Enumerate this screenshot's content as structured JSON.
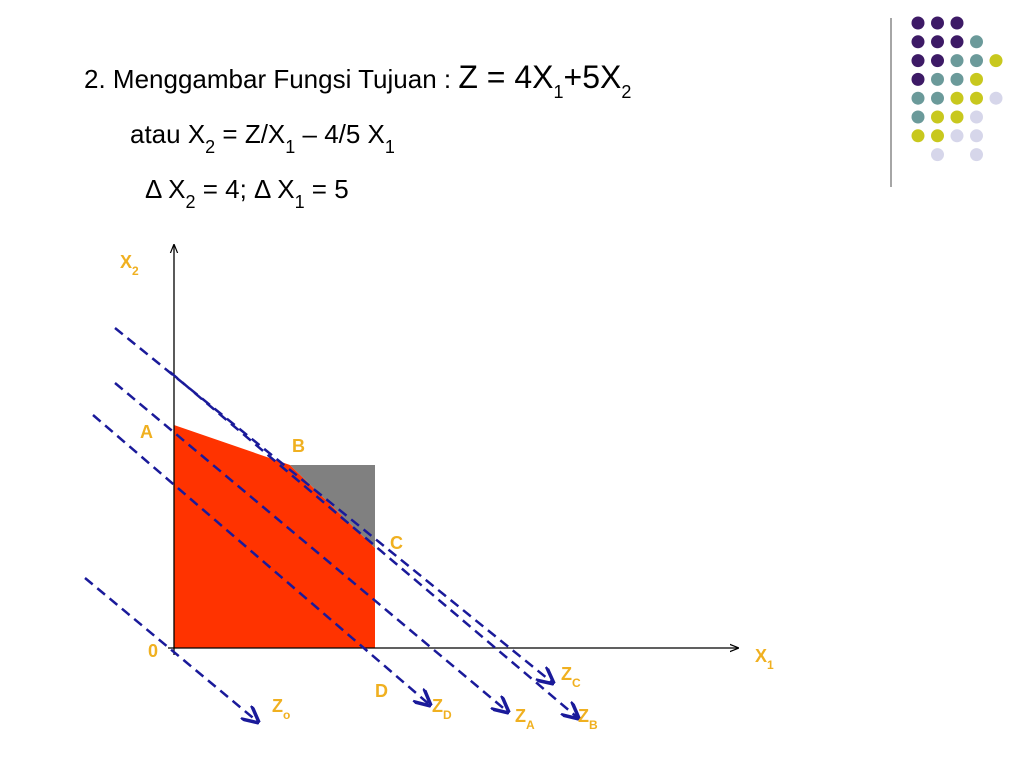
{
  "heading": {
    "lines": [
      [
        {
          "text": "2.  Menggambar Fungsi Tujuan : "
        },
        {
          "text": "Z = 4X",
          "big": true
        },
        {
          "text": "1",
          "sub": true
        },
        {
          "text": "+5X",
          "big": true
        },
        {
          "text": "2",
          "sub": true
        }
      ],
      [
        {
          "text": "atau X"
        },
        {
          "text": "2",
          "sub": true
        },
        {
          "text": " = Z/X"
        },
        {
          "text": "1",
          "sub": true
        },
        {
          "text": " – 4/5 X"
        },
        {
          "text": "1",
          "sub": true
        }
      ],
      [
        {
          "text": "Δ X"
        },
        {
          "text": "2",
          "sub": true
        },
        {
          "text": " = 4; Δ X"
        },
        {
          "text": "1",
          "sub": true
        },
        {
          "text": " = 5"
        }
      ]
    ]
  },
  "diagram": {
    "labels": [
      [
        {
          "text": "X"
        },
        {
          "text": "2",
          "sub": true
        }
      ],
      [
        {
          "text": "A"
        }
      ],
      [
        {
          "text": "B"
        }
      ],
      [
        {
          "text": "C"
        }
      ],
      [
        {
          "text": "0"
        }
      ],
      [
        {
          "text": "X"
        },
        {
          "text": "1",
          "sub": true
        }
      ],
      [
        {
          "text": "D"
        }
      ],
      [
        {
          "text": "Z"
        },
        {
          "text": "o",
          "sub": true
        }
      ],
      [
        {
          "text": "Z"
        },
        {
          "text": "D",
          "sub": true
        }
      ],
      [
        {
          "text": "Z"
        },
        {
          "text": "A",
          "sub": true
        }
      ],
      [
        {
          "text": "Z"
        },
        {
          "text": "B",
          "sub": true
        }
      ],
      [
        {
          "text": "Z"
        },
        {
          "text": "C",
          "sub": true
        }
      ]
    ]
  }
}
